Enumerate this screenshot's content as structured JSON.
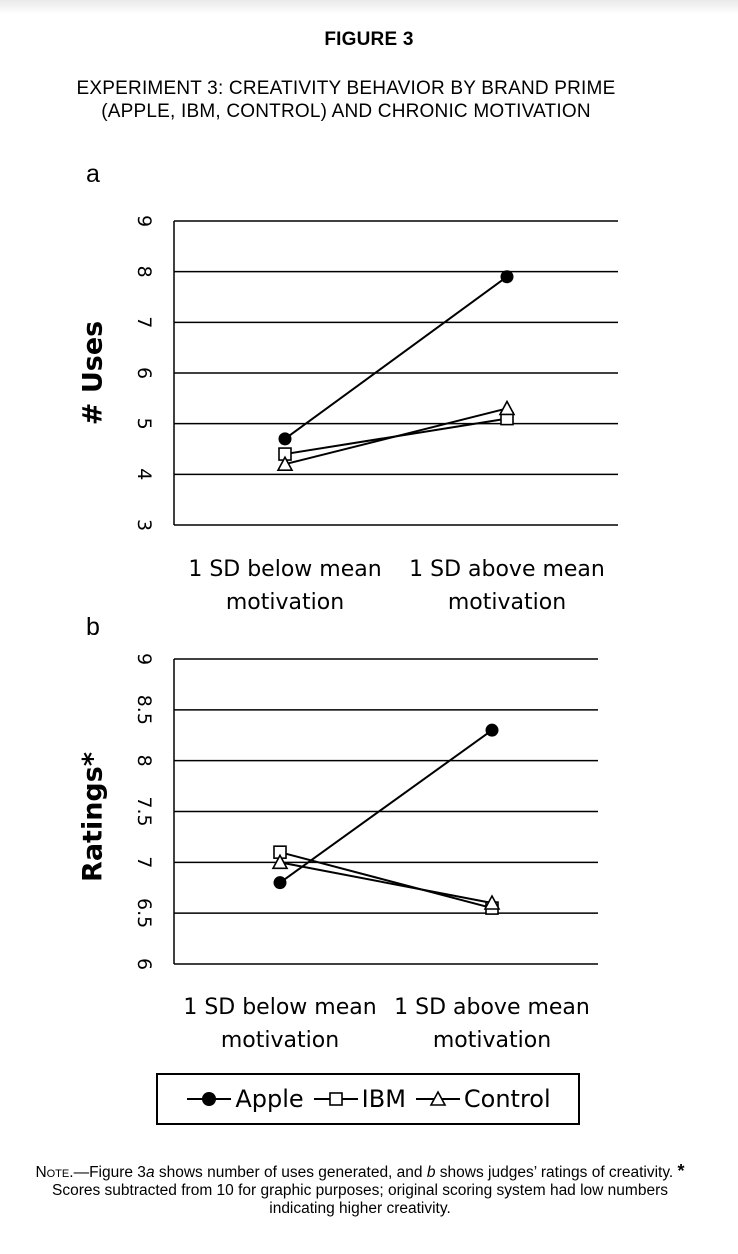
{
  "figure": {
    "label": "FIGURE 3",
    "title_line1": "EXPERIMENT 3: CREATIVITY BEHAVIOR BY BRAND PRIME",
    "title_line2": "(APPLE, IBM, CONTROL) AND CHRONIC MOTIVATION"
  },
  "chart_data": [
    {
      "type": "line",
      "panel": "a",
      "ylabel": "# Uses",
      "xlabel": "",
      "ylim": [
        3,
        9
      ],
      "yticks": [
        "9",
        "8",
        "7",
        "6",
        "5",
        "4",
        "3"
      ],
      "grid": true,
      "categories": [
        [
          "1 SD below mean",
          "motivation"
        ],
        [
          "1 SD above mean",
          "motivation"
        ]
      ],
      "series": [
        {
          "name": "Apple",
          "values": [
            4.7,
            7.9
          ],
          "marker": "filled-circle"
        },
        {
          "name": "IBM",
          "values": [
            4.4,
            5.1
          ],
          "marker": "open-square"
        },
        {
          "name": "Control",
          "values": [
            4.2,
            5.3
          ],
          "marker": "open-triangle"
        }
      ]
    },
    {
      "type": "line",
      "panel": "b",
      "ylabel": "Ratings*",
      "xlabel": "",
      "ylim": [
        6,
        9
      ],
      "yticks": [
        "9",
        "8.5",
        "8",
        "7.5",
        "7",
        "6.5",
        "6"
      ],
      "grid": true,
      "categories": [
        [
          "1 SD below mean",
          "motivation"
        ],
        [
          "1 SD above mean",
          "motivation"
        ]
      ],
      "series": [
        {
          "name": "Apple",
          "values": [
            6.8,
            8.3
          ],
          "marker": "filled-circle"
        },
        {
          "name": "IBM",
          "values": [
            7.1,
            6.55
          ],
          "marker": "open-square"
        },
        {
          "name": "Control",
          "values": [
            7.0,
            6.6
          ],
          "marker": "open-triangle"
        }
      ]
    }
  ],
  "legend": {
    "position": "bottom",
    "items": [
      {
        "label": "Apple",
        "marker": "filled-circle"
      },
      {
        "label": "IBM",
        "marker": "open-square"
      },
      {
        "label": "Control",
        "marker": "open-triangle"
      }
    ]
  },
  "note": {
    "lead": "Note.",
    "text_1": "—Figure 3",
    "em_1": "a",
    "text_2": " shows number of uses generated, and ",
    "em_2": "b",
    "text_3": " shows judges’ ratings of creativity. ",
    "star": "*",
    "text_4": " Scores subtracted from 10 for graphic purposes; original scoring system had low numbers indicating higher creativity."
  }
}
